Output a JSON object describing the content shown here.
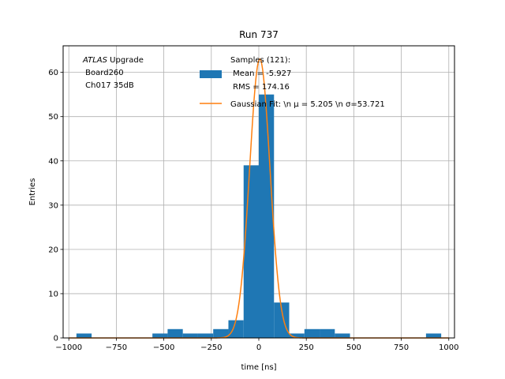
{
  "chart_data": {
    "type": "bar",
    "title": "Run 737",
    "xlabel": "time [ns]",
    "ylabel": "Entries",
    "xlim": [
      -1030,
      1030
    ],
    "ylim": [
      0,
      66
    ],
    "x_ticks": [
      -1000,
      -750,
      -500,
      -250,
      0,
      250,
      500,
      750,
      1000
    ],
    "x_tick_labels": [
      "−1000",
      "−750",
      "−500",
      "−250",
      "0",
      "250",
      "500",
      "750",
      "1000"
    ],
    "y_ticks": [
      0,
      10,
      20,
      30,
      40,
      50,
      60
    ],
    "y_tick_labels": [
      "0",
      "10",
      "20",
      "30",
      "40",
      "50",
      "60"
    ],
    "grid": true,
    "legend_position": "top-right",
    "annotation_lines": [
      "ATLAS Upgrade",
      " Board260",
      " Ch017 35dB"
    ],
    "series": [
      {
        "name": "Samples (121):\n Mean = -5.927\n RMS = 174.16",
        "type": "histogram",
        "color": "#1f77b4",
        "bin_width": 80,
        "bins": [
          {
            "x0": -960,
            "count": 1
          },
          {
            "x0": -560,
            "count": 1
          },
          {
            "x0": -480,
            "count": 2
          },
          {
            "x0": -400,
            "count": 1
          },
          {
            "x0": -320,
            "count": 1
          },
          {
            "x0": -240,
            "count": 2
          },
          {
            "x0": -160,
            "count": 4
          },
          {
            "x0": -80,
            "count": 39
          },
          {
            "x0": 0,
            "count": 55
          },
          {
            "x0": 80,
            "count": 8
          },
          {
            "x0": 160,
            "count": 1
          },
          {
            "x0": 240,
            "count": 2
          },
          {
            "x0": 320,
            "count": 2
          },
          {
            "x0": 400,
            "count": 1
          },
          {
            "x0": 880,
            "count": 1
          }
        ]
      },
      {
        "name": "Gaussian Fit: \\n μ = 5.205 \\n σ=53.721",
        "type": "line",
        "color": "#ff7f0e",
        "mu": 5.205,
        "sigma": 53.721,
        "amplitude": 63
      }
    ]
  }
}
